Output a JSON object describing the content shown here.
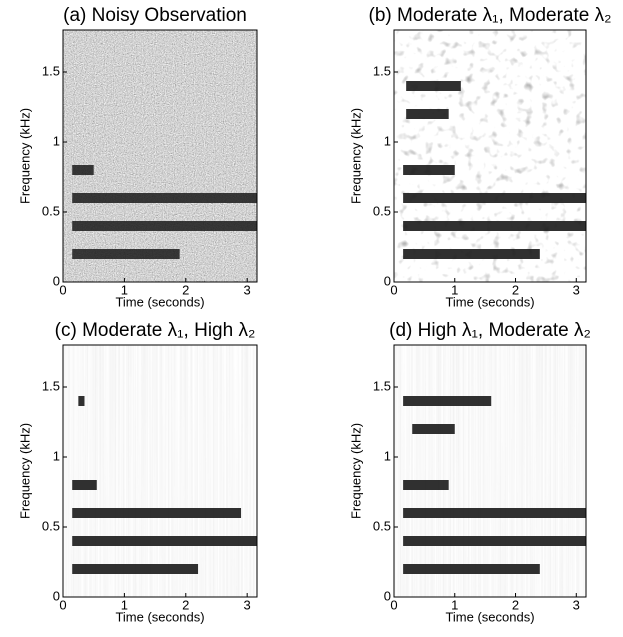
{
  "chart_data": [
    {
      "type": "spectrogram",
      "title": "(a) Noisy Observation",
      "xlabel": "Time (seconds)",
      "ylabel": "Frequency (kHz)",
      "color": "#1a1a1a",
      "xlim": [
        0,
        3.16
      ],
      "xticks": [
        0,
        1,
        2,
        3
      ],
      "ylim": [
        0,
        1.8
      ],
      "yticks": [
        0,
        0.5,
        1,
        1.5
      ],
      "bands": [
        {
          "freq": 0.2,
          "start": 0.15,
          "end": 1.9
        },
        {
          "freq": 0.4,
          "start": 0.15,
          "end": 3.16
        },
        {
          "freq": 0.6,
          "start": 0.15,
          "end": 3.16
        },
        {
          "freq": 0.8,
          "start": 0.15,
          "end": 0.5
        }
      ]
    },
    {
      "type": "spectrogram",
      "title": "(b) Moderate λ₁, Moderate λ₂",
      "xlabel": "Time (seconds)",
      "ylabel": "Frequency (kHz)",
      "color": "#1a1a1a",
      "xlim": [
        0,
        3.16
      ],
      "xticks": [
        0,
        1,
        2,
        3
      ],
      "ylim": [
        0,
        1.8
      ],
      "yticks": [
        0,
        0.5,
        1,
        1.5
      ],
      "bands": [
        {
          "freq": 0.2,
          "start": 0.15,
          "end": 2.4
        },
        {
          "freq": 0.4,
          "start": 0.15,
          "end": 3.16
        },
        {
          "freq": 0.6,
          "start": 0.15,
          "end": 3.16
        },
        {
          "freq": 0.8,
          "start": 0.15,
          "end": 1.0
        },
        {
          "freq": 1.2,
          "start": 0.2,
          "end": 0.9
        },
        {
          "freq": 1.4,
          "start": 0.2,
          "end": 1.1
        }
      ]
    },
    {
      "type": "spectrogram",
      "title": "(c) Moderate λ₁, High λ₂",
      "xlabel": "Time (seconds)",
      "ylabel": "Frequency (kHz)",
      "color": "#1a1a1a",
      "xlim": [
        0,
        3.16
      ],
      "xticks": [
        0,
        1,
        2,
        3
      ],
      "ylim": [
        0,
        1.8
      ],
      "yticks": [
        0,
        0.5,
        1,
        1.5
      ],
      "bands": [
        {
          "freq": 0.2,
          "start": 0.15,
          "end": 2.2
        },
        {
          "freq": 0.4,
          "start": 0.15,
          "end": 3.16
        },
        {
          "freq": 0.6,
          "start": 0.15,
          "end": 2.9
        },
        {
          "freq": 0.8,
          "start": 0.15,
          "end": 0.55
        },
        {
          "freq": 1.4,
          "start": 0.25,
          "end": 0.35
        }
      ]
    },
    {
      "type": "spectrogram",
      "title": "(d) High λ₁, Moderate λ₂",
      "xlabel": "Time (seconds)",
      "ylabel": "Frequency (kHz)",
      "color": "#1a1a1a",
      "xlim": [
        0,
        3.16
      ],
      "xticks": [
        0,
        1,
        2,
        3
      ],
      "ylim": [
        0,
        1.8
      ],
      "yticks": [
        0,
        0.5,
        1,
        1.5
      ],
      "bands": [
        {
          "freq": 0.2,
          "start": 0.15,
          "end": 2.4
        },
        {
          "freq": 0.4,
          "start": 0.15,
          "end": 3.16
        },
        {
          "freq": 0.6,
          "start": 0.15,
          "end": 3.16
        },
        {
          "freq": 0.8,
          "start": 0.15,
          "end": 0.9
        },
        {
          "freq": 1.2,
          "start": 0.3,
          "end": 1.0
        },
        {
          "freq": 1.4,
          "start": 0.15,
          "end": 1.6
        }
      ]
    }
  ]
}
